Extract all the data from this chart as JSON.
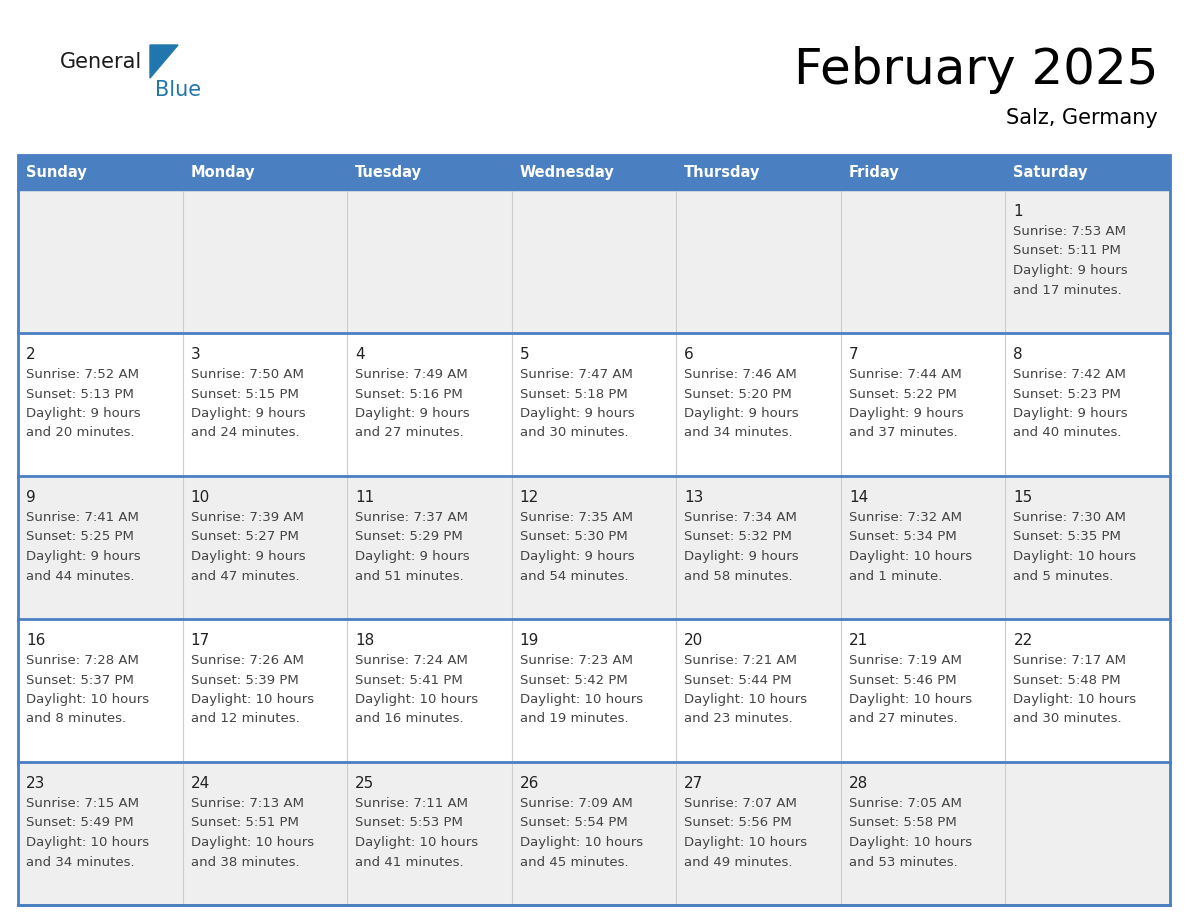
{
  "title": "February 2025",
  "subtitle": "Salz, Germany",
  "days_of_week": [
    "Sunday",
    "Monday",
    "Tuesday",
    "Wednesday",
    "Thursday",
    "Friday",
    "Saturday"
  ],
  "header_bg": "#4a7fc1",
  "header_text": "#FFFFFF",
  "row_bg_gray": "#EFEFEF",
  "row_bg_white": "#FFFFFF",
  "grid_line_color": "#4a7fc1",
  "day_number_color": "#222222",
  "info_text_color": "#444444",
  "calendar": [
    [
      null,
      null,
      null,
      null,
      null,
      null,
      {
        "day": 1,
        "sunrise": "7:53 AM",
        "sunset": "5:11 PM",
        "daylight_line1": "Daylight: 9 hours",
        "daylight_line2": "and 17 minutes."
      }
    ],
    [
      {
        "day": 2,
        "sunrise": "7:52 AM",
        "sunset": "5:13 PM",
        "daylight_line1": "Daylight: 9 hours",
        "daylight_line2": "and 20 minutes."
      },
      {
        "day": 3,
        "sunrise": "7:50 AM",
        "sunset": "5:15 PM",
        "daylight_line1": "Daylight: 9 hours",
        "daylight_line2": "and 24 minutes."
      },
      {
        "day": 4,
        "sunrise": "7:49 AM",
        "sunset": "5:16 PM",
        "daylight_line1": "Daylight: 9 hours",
        "daylight_line2": "and 27 minutes."
      },
      {
        "day": 5,
        "sunrise": "7:47 AM",
        "sunset": "5:18 PM",
        "daylight_line1": "Daylight: 9 hours",
        "daylight_line2": "and 30 minutes."
      },
      {
        "day": 6,
        "sunrise": "7:46 AM",
        "sunset": "5:20 PM",
        "daylight_line1": "Daylight: 9 hours",
        "daylight_line2": "and 34 minutes."
      },
      {
        "day": 7,
        "sunrise": "7:44 AM",
        "sunset": "5:22 PM",
        "daylight_line1": "Daylight: 9 hours",
        "daylight_line2": "and 37 minutes."
      },
      {
        "day": 8,
        "sunrise": "7:42 AM",
        "sunset": "5:23 PM",
        "daylight_line1": "Daylight: 9 hours",
        "daylight_line2": "and 40 minutes."
      }
    ],
    [
      {
        "day": 9,
        "sunrise": "7:41 AM",
        "sunset": "5:25 PM",
        "daylight_line1": "Daylight: 9 hours",
        "daylight_line2": "and 44 minutes."
      },
      {
        "day": 10,
        "sunrise": "7:39 AM",
        "sunset": "5:27 PM",
        "daylight_line1": "Daylight: 9 hours",
        "daylight_line2": "and 47 minutes."
      },
      {
        "day": 11,
        "sunrise": "7:37 AM",
        "sunset": "5:29 PM",
        "daylight_line1": "Daylight: 9 hours",
        "daylight_line2": "and 51 minutes."
      },
      {
        "day": 12,
        "sunrise": "7:35 AM",
        "sunset": "5:30 PM",
        "daylight_line1": "Daylight: 9 hours",
        "daylight_line2": "and 54 minutes."
      },
      {
        "day": 13,
        "sunrise": "7:34 AM",
        "sunset": "5:32 PM",
        "daylight_line1": "Daylight: 9 hours",
        "daylight_line2": "and 58 minutes."
      },
      {
        "day": 14,
        "sunrise": "7:32 AM",
        "sunset": "5:34 PM",
        "daylight_line1": "Daylight: 10 hours",
        "daylight_line2": "and 1 minute."
      },
      {
        "day": 15,
        "sunrise": "7:30 AM",
        "sunset": "5:35 PM",
        "daylight_line1": "Daylight: 10 hours",
        "daylight_line2": "and 5 minutes."
      }
    ],
    [
      {
        "day": 16,
        "sunrise": "7:28 AM",
        "sunset": "5:37 PM",
        "daylight_line1": "Daylight: 10 hours",
        "daylight_line2": "and 8 minutes."
      },
      {
        "day": 17,
        "sunrise": "7:26 AM",
        "sunset": "5:39 PM",
        "daylight_line1": "Daylight: 10 hours",
        "daylight_line2": "and 12 minutes."
      },
      {
        "day": 18,
        "sunrise": "7:24 AM",
        "sunset": "5:41 PM",
        "daylight_line1": "Daylight: 10 hours",
        "daylight_line2": "and 16 minutes."
      },
      {
        "day": 19,
        "sunrise": "7:23 AM",
        "sunset": "5:42 PM",
        "daylight_line1": "Daylight: 10 hours",
        "daylight_line2": "and 19 minutes."
      },
      {
        "day": 20,
        "sunrise": "7:21 AM",
        "sunset": "5:44 PM",
        "daylight_line1": "Daylight: 10 hours",
        "daylight_line2": "and 23 minutes."
      },
      {
        "day": 21,
        "sunrise": "7:19 AM",
        "sunset": "5:46 PM",
        "daylight_line1": "Daylight: 10 hours",
        "daylight_line2": "and 27 minutes."
      },
      {
        "day": 22,
        "sunrise": "7:17 AM",
        "sunset": "5:48 PM",
        "daylight_line1": "Daylight: 10 hours",
        "daylight_line2": "and 30 minutes."
      }
    ],
    [
      {
        "day": 23,
        "sunrise": "7:15 AM",
        "sunset": "5:49 PM",
        "daylight_line1": "Daylight: 10 hours",
        "daylight_line2": "and 34 minutes."
      },
      {
        "day": 24,
        "sunrise": "7:13 AM",
        "sunset": "5:51 PM",
        "daylight_line1": "Daylight: 10 hours",
        "daylight_line2": "and 38 minutes."
      },
      {
        "day": 25,
        "sunrise": "7:11 AM",
        "sunset": "5:53 PM",
        "daylight_line1": "Daylight: 10 hours",
        "daylight_line2": "and 41 minutes."
      },
      {
        "day": 26,
        "sunrise": "7:09 AM",
        "sunset": "5:54 PM",
        "daylight_line1": "Daylight: 10 hours",
        "daylight_line2": "and 45 minutes."
      },
      {
        "day": 27,
        "sunrise": "7:07 AM",
        "sunset": "5:56 PM",
        "daylight_line1": "Daylight: 10 hours",
        "daylight_line2": "and 49 minutes."
      },
      {
        "day": 28,
        "sunrise": "7:05 AM",
        "sunset": "5:58 PM",
        "daylight_line1": "Daylight: 10 hours",
        "daylight_line2": "and 53 minutes."
      },
      null
    ]
  ],
  "logo_general_color": "#1a1a1a",
  "logo_blue_color": "#2176AE",
  "logo_triangle_color": "#2176AE",
  "fig_width": 11.88,
  "fig_height": 9.18,
  "dpi": 100
}
